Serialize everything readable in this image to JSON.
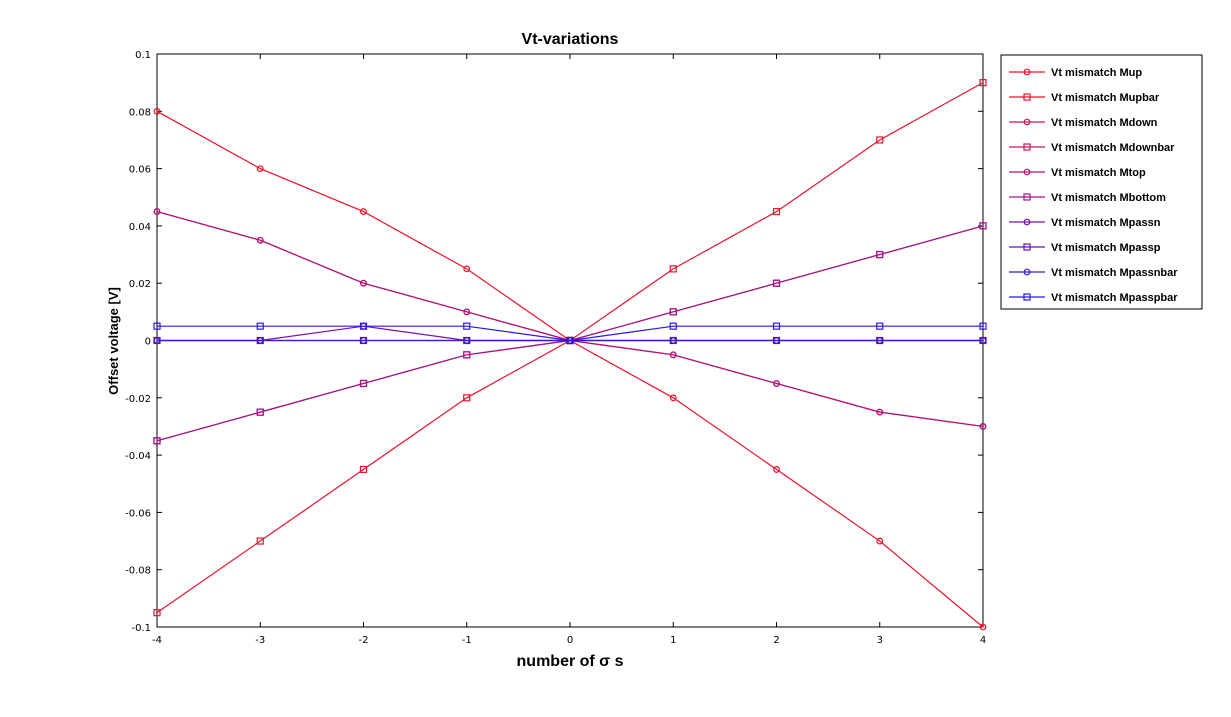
{
  "chart_data": {
    "type": "line",
    "title": "Vt-variations",
    "xlabel": "number of σ s",
    "ylabel": "Offset voltage [V]",
    "xlim": [
      -4,
      4
    ],
    "ylim": [
      -0.1,
      0.1
    ],
    "x": [
      -4,
      -3,
      -2,
      -1,
      0,
      1,
      2,
      3,
      4
    ],
    "xticks": [
      -4,
      -3,
      -2,
      -1,
      0,
      1,
      2,
      3,
      4
    ],
    "xtick_labels": [
      "-4",
      "-3",
      "-2",
      "-1",
      "0",
      "1",
      "2",
      "3",
      "4"
    ],
    "yticks": [
      -0.1,
      -0.08,
      -0.06,
      -0.04,
      -0.02,
      0,
      0.02,
      0.04,
      0.06,
      0.08,
      0.1
    ],
    "ytick_labels": [
      "-0.1",
      "-0.08",
      "-0.06",
      "-0.04",
      "-0.02",
      "0",
      "0.02",
      "0.04",
      "0.06",
      "0.08",
      "0.1"
    ],
    "grid": false,
    "legend_position": "outside-top-right",
    "series": [
      {
        "name": "Vt mismatch Mup",
        "marker": "circle",
        "color": "#f0102a",
        "values": [
          0.08,
          0.06,
          0.045,
          0.025,
          0,
          -0.02,
          -0.045,
          -0.07,
          -0.1
        ]
      },
      {
        "name": "Vt mismatch Mupbar",
        "marker": "square",
        "color": "#e6142e",
        "values": [
          -0.095,
          -0.07,
          -0.045,
          -0.02,
          0,
          0.025,
          0.045,
          0.07,
          0.09
        ]
      },
      {
        "name": "Vt mismatch Mdown",
        "marker": "circle",
        "color": "#d01454",
        "values": [
          0.045,
          0.035,
          0.02,
          0.01,
          0,
          -0.005,
          -0.015,
          -0.025,
          -0.03
        ]
      },
      {
        "name": "Vt mismatch Mdownbar",
        "marker": "square",
        "color": "#c2185e",
        "values": [
          -0.035,
          -0.025,
          -0.015,
          -0.005,
          0,
          0.01,
          0.02,
          0.03,
          0.04
        ]
      },
      {
        "name": "Vt mismatch Mtop",
        "marker": "circle",
        "color": "#b01478",
        "values": [
          0.045,
          0.035,
          0.02,
          0.01,
          0,
          -0.005,
          -0.015,
          -0.025,
          -0.03
        ]
      },
      {
        "name": "Vt mismatch Mbottom",
        "marker": "square",
        "color": "#a0168a",
        "values": [
          -0.035,
          -0.025,
          -0.015,
          -0.005,
          0,
          0.01,
          0.02,
          0.03,
          0.04
        ]
      },
      {
        "name": "Vt mismatch Mpassn",
        "marker": "circle",
        "color": "#7a10a8",
        "values": [
          0,
          0,
          0.005,
          0,
          0,
          0,
          0,
          0,
          0
        ]
      },
      {
        "name": "Vt mismatch Mpassp",
        "marker": "square",
        "color": "#6214b8",
        "values": [
          0,
          0,
          0,
          0,
          0,
          0,
          0,
          0,
          0
        ]
      },
      {
        "name": "Vt mismatch Mpassnbar",
        "marker": "circle",
        "color": "#3a18cc",
        "values": [
          0,
          0,
          0,
          0,
          0,
          0,
          0,
          0,
          0
        ]
      },
      {
        "name": "Vt mismatch Mpasspbar",
        "marker": "square",
        "color": "#2a1ae0",
        "values": [
          0.005,
          0.005,
          0.005,
          0.005,
          0,
          0.005,
          0.005,
          0.005,
          0.005
        ]
      }
    ]
  }
}
